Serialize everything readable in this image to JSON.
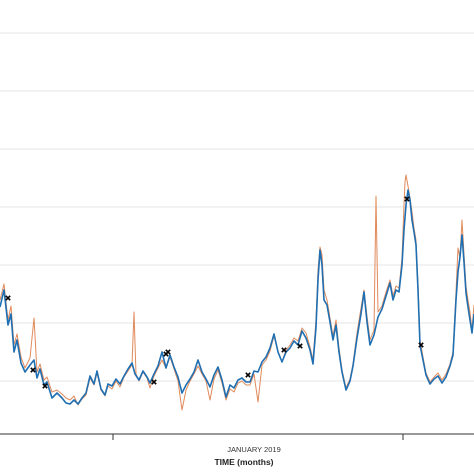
{
  "chart_data": {
    "type": "line",
    "title": "",
    "xlabel": "TIME (months)",
    "ylabel": "",
    "x_tick_labels": [
      "JANUARY 2019"
    ],
    "grid": "horizontal",
    "colors": {
      "series_primary": "#1f6fb2",
      "series_secondary": "#e08a5a",
      "markers": "#000000",
      "grid": "#e6e6e6",
      "axis": "#333333"
    },
    "series": [
      {
        "values": [
          [
            0,
            307
          ],
          [
            4,
            290
          ],
          [
            8,
            325
          ],
          [
            11,
            314
          ],
          [
            14,
            352
          ],
          [
            17,
            340
          ],
          [
            21,
            363
          ],
          [
            25,
            372
          ],
          [
            30,
            365
          ],
          [
            34,
            360
          ],
          [
            37,
            378
          ],
          [
            40,
            369
          ],
          [
            44,
            385
          ],
          [
            47,
            382
          ],
          [
            52,
            398
          ],
          [
            57,
            393
          ],
          [
            62,
            398
          ],
          [
            66,
            403
          ],
          [
            70,
            404
          ],
          [
            74,
            400
          ],
          [
            78,
            404
          ],
          [
            82,
            398
          ],
          [
            86,
            393
          ],
          [
            90,
            376
          ],
          [
            94,
            384
          ],
          [
            97,
            371
          ],
          [
            101,
            389
          ],
          [
            105,
            395
          ],
          [
            108,
            384
          ],
          [
            112,
            386
          ],
          [
            116,
            379
          ],
          [
            120,
            384
          ],
          [
            124,
            376
          ],
          [
            128,
            369
          ],
          [
            132,
            363
          ],
          [
            135,
            374
          ],
          [
            139,
            380
          ],
          [
            143,
            371
          ],
          [
            147,
            377
          ],
          [
            150,
            383
          ],
          [
            154,
            374
          ],
          [
            158,
            366
          ],
          [
            162,
            352
          ],
          [
            166,
            368
          ],
          [
            170,
            355
          ],
          [
            174,
            367
          ],
          [
            178,
            377
          ],
          [
            182,
            393
          ],
          [
            186,
            385
          ],
          [
            190,
            379
          ],
          [
            194,
            372
          ],
          [
            198,
            360
          ],
          [
            202,
            372
          ],
          [
            206,
            379
          ],
          [
            210,
            387
          ],
          [
            214,
            375
          ],
          [
            218,
            367
          ],
          [
            222,
            380
          ],
          [
            226,
            397
          ],
          [
            230,
            385
          ],
          [
            234,
            388
          ],
          [
            238,
            380
          ],
          [
            242,
            378
          ],
          [
            246,
            382
          ],
          [
            250,
            382
          ],
          [
            254,
            371
          ],
          [
            258,
            372
          ],
          [
            262,
            362
          ],
          [
            266,
            357
          ],
          [
            270,
            348
          ],
          [
            274,
            334
          ],
          [
            278,
            352
          ],
          [
            282,
            362
          ],
          [
            286,
            352
          ],
          [
            290,
            348
          ],
          [
            294,
            341
          ],
          [
            298,
            345
          ],
          [
            302,
            331
          ],
          [
            306,
            338
          ],
          [
            310,
            350
          ],
          [
            313,
            364
          ],
          [
            316,
            327
          ],
          [
            318,
            280
          ],
          [
            320,
            250
          ],
          [
            322,
            265
          ],
          [
            324,
            300
          ],
          [
            327,
            305
          ],
          [
            330,
            322
          ],
          [
            333,
            340
          ],
          [
            336,
            325
          ],
          [
            339,
            352
          ],
          [
            342,
            372
          ],
          [
            346,
            390
          ],
          [
            350,
            381
          ],
          [
            353,
            366
          ],
          [
            357,
            338
          ],
          [
            361,
            314
          ],
          [
            364,
            292
          ],
          [
            367,
            322
          ],
          [
            370,
            345
          ],
          [
            374,
            335
          ],
          [
            378,
            317
          ],
          [
            382,
            309
          ],
          [
            386,
            296
          ],
          [
            390,
            283
          ],
          [
            393,
            300
          ],
          [
            396,
            290
          ],
          [
            399,
            292
          ],
          [
            402,
            265
          ],
          [
            404,
            230
          ],
          [
            406,
            205
          ],
          [
            408,
            190
          ],
          [
            410,
            200
          ],
          [
            412,
            220
          ],
          [
            414,
            232
          ],
          [
            416,
            245
          ],
          [
            418,
            290
          ],
          [
            420,
            345
          ],
          [
            423,
            360
          ],
          [
            426,
            375
          ],
          [
            430,
            384
          ],
          [
            434,
            379
          ],
          [
            438,
            376
          ],
          [
            442,
            383
          ],
          [
            446,
            377
          ],
          [
            450,
            366
          ],
          [
            453,
            355
          ],
          [
            456,
            300
          ],
          [
            458,
            272
          ],
          [
            460,
            257
          ],
          [
            462,
            235
          ],
          [
            464,
            262
          ],
          [
            466,
            293
          ],
          [
            468,
            307
          ],
          [
            470,
            320
          ],
          [
            472,
            333
          ],
          [
            474,
            314
          ]
        ]
      },
      {
        "values": [
          [
            0,
            300
          ],
          [
            4,
            284
          ],
          [
            8,
            320
          ],
          [
            11,
            306
          ],
          [
            14,
            345
          ],
          [
            17,
            334
          ],
          [
            21,
            357
          ],
          [
            25,
            368
          ],
          [
            30,
            358
          ],
          [
            34,
            318
          ],
          [
            37,
            372
          ],
          [
            40,
            364
          ],
          [
            44,
            380
          ],
          [
            47,
            377
          ],
          [
            52,
            392
          ],
          [
            57,
            390
          ],
          [
            62,
            394
          ],
          [
            66,
            398
          ],
          [
            70,
            400
          ],
          [
            74,
            396
          ],
          [
            78,
            405
          ],
          [
            82,
            399
          ],
          [
            86,
            395
          ],
          [
            90,
            378
          ],
          [
            94,
            385
          ],
          [
            97,
            373
          ],
          [
            101,
            390
          ],
          [
            105,
            396
          ],
          [
            108,
            386
          ],
          [
            112,
            389
          ],
          [
            116,
            381
          ],
          [
            120,
            387
          ],
          [
            124,
            377
          ],
          [
            128,
            371
          ],
          [
            132,
            365
          ],
          [
            134,
            312
          ],
          [
            136,
            374
          ],
          [
            139,
            381
          ],
          [
            143,
            372
          ],
          [
            147,
            378
          ],
          [
            150,
            388
          ],
          [
            154,
            376
          ],
          [
            158,
            368
          ],
          [
            162,
            360
          ],
          [
            166,
            368
          ],
          [
            170,
            357
          ],
          [
            174,
            369
          ],
          [
            178,
            381
          ],
          [
            182,
            410
          ],
          [
            186,
            390
          ],
          [
            190,
            381
          ],
          [
            194,
            374
          ],
          [
            198,
            366
          ],
          [
            202,
            374
          ],
          [
            206,
            381
          ],
          [
            210,
            400
          ],
          [
            214,
            379
          ],
          [
            218,
            370
          ],
          [
            222,
            383
          ],
          [
            226,
            400
          ],
          [
            230,
            389
          ],
          [
            234,
            392
          ],
          [
            238,
            383
          ],
          [
            242,
            381
          ],
          [
            246,
            385
          ],
          [
            250,
            385
          ],
          [
            254,
            374
          ],
          [
            258,
            402
          ],
          [
            262,
            365
          ],
          [
            266,
            360
          ],
          [
            270,
            351
          ],
          [
            274,
            336
          ],
          [
            278,
            351
          ],
          [
            282,
            362
          ],
          [
            286,
            350
          ],
          [
            290,
            345
          ],
          [
            294,
            338
          ],
          [
            298,
            341
          ],
          [
            302,
            328
          ],
          [
            306,
            333
          ],
          [
            310,
            347
          ],
          [
            313,
            360
          ],
          [
            316,
            320
          ],
          [
            318,
            270
          ],
          [
            320,
            247
          ],
          [
            322,
            255
          ],
          [
            324,
            290
          ],
          [
            327,
            300
          ],
          [
            330,
            318
          ],
          [
            333,
            336
          ],
          [
            336,
            320
          ],
          [
            339,
            348
          ],
          [
            342,
            370
          ],
          [
            346,
            388
          ],
          [
            350,
            379
          ],
          [
            353,
            364
          ],
          [
            357,
            333
          ],
          [
            361,
            308
          ],
          [
            364,
            290
          ],
          [
            367,
            316
          ],
          [
            370,
            340
          ],
          [
            374,
            330
          ],
          [
            376,
            196
          ],
          [
            378,
            312
          ],
          [
            382,
            306
          ],
          [
            386,
            292
          ],
          [
            390,
            280
          ],
          [
            393,
            296
          ],
          [
            396,
            286
          ],
          [
            399,
            288
          ],
          [
            402,
            258
          ],
          [
            404,
            205
          ],
          [
            405,
            182
          ],
          [
            406,
            175
          ],
          [
            408,
            186
          ],
          [
            410,
            198
          ],
          [
            412,
            212
          ],
          [
            414,
            228
          ],
          [
            416,
            240
          ],
          [
            418,
            283
          ],
          [
            420,
            340
          ],
          [
            423,
            357
          ],
          [
            426,
            373
          ],
          [
            430,
            382
          ],
          [
            434,
            377
          ],
          [
            438,
            373
          ],
          [
            442,
            380
          ],
          [
            446,
            374
          ],
          [
            450,
            364
          ],
          [
            453,
            352
          ],
          [
            456,
            292
          ],
          [
            458,
            248
          ],
          [
            460,
            258
          ],
          [
            462,
            220
          ],
          [
            464,
            254
          ],
          [
            466,
            286
          ],
          [
            468,
            300
          ],
          [
            470,
            312
          ],
          [
            472,
            330
          ],
          [
            474,
            305
          ]
        ]
      }
    ],
    "markers": [
      [
        8,
        298
      ],
      [
        33,
        370
      ],
      [
        45,
        386
      ],
      [
        154,
        382
      ],
      [
        166,
        354
      ],
      [
        168,
        352
      ],
      [
        248,
        375
      ],
      [
        284,
        350
      ],
      [
        300,
        346
      ],
      [
        407,
        199
      ],
      [
        421,
        345
      ]
    ]
  }
}
